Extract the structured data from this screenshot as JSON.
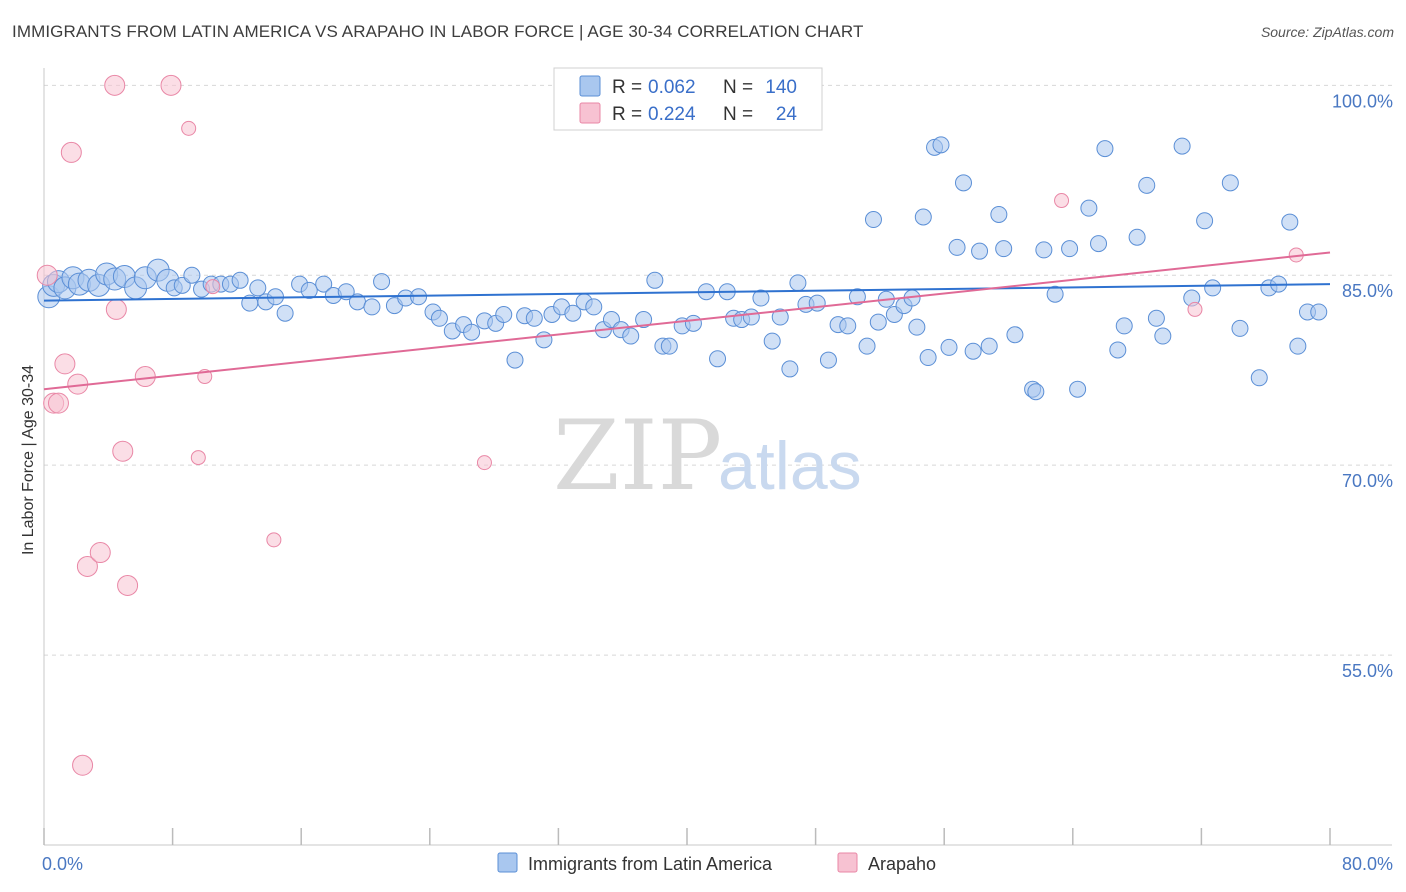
{
  "header": {
    "title": "IMMIGRANTS FROM LATIN AMERICA VS ARAPAHO IN LABOR FORCE | AGE 30-34 CORRELATION CHART",
    "source": "Source: ZipAtlas.com"
  },
  "watermark": {
    "zip": "ZIP",
    "atlas": "atlas"
  },
  "colors": {
    "blue_fill": "#a9c7ef",
    "blue_stroke": "#5b8fd6",
    "blue_line": "#2f72d0",
    "pink_fill": "#f7c2d2",
    "pink_stroke": "#e987a6",
    "pink_line": "#e06a96",
    "grid": "#d7d7d7",
    "tick_text": "#4a78c2"
  },
  "legend": {
    "rows": [
      {
        "r_label": "R =",
        "r_value": "0.062",
        "n_label": "N =",
        "n_value": "140"
      },
      {
        "r_label": "R =",
        "r_value": "0.224",
        "n_label": "N =",
        "n_value": "24"
      }
    ]
  },
  "chart_data": {
    "type": "scatter",
    "title": "IMMIGRANTS FROM LATIN AMERICA VS ARAPAHO IN LABOR FORCE | AGE 30-34 CORRELATION CHART",
    "xlabel": "",
    "ylabel": "In Labor Force | Age 30-34",
    "xlim": [
      0,
      80
    ],
    "ylim": [
      40,
      102
    ],
    "x_tick_labels": [
      "0.0%",
      "80.0%"
    ],
    "y_ticks": [
      {
        "value": 100,
        "label": "100.0%"
      },
      {
        "value": 85,
        "label": "85.0%"
      },
      {
        "value": 70,
        "label": "70.0%"
      },
      {
        "value": 55,
        "label": "55.0%"
      }
    ],
    "grid": true,
    "legend_position": "top-center",
    "series": [
      {
        "name": "Immigrants from Latin America",
        "r": 0.062,
        "n": 140,
        "trend": {
          "x": [
            0,
            80
          ],
          "y": [
            83.0,
            84.3
          ]
        },
        "points": [
          [
            0.3,
            83.3
          ],
          [
            0.6,
            84.2
          ],
          [
            0.9,
            84.5
          ],
          [
            1.3,
            84.0
          ],
          [
            1.8,
            84.8
          ],
          [
            2.2,
            84.3
          ],
          [
            2.8,
            84.6
          ],
          [
            3.4,
            84.2
          ],
          [
            3.9,
            85.1
          ],
          [
            4.4,
            84.7
          ],
          [
            5.0,
            84.9
          ],
          [
            5.7,
            84.0
          ],
          [
            6.3,
            84.8
          ],
          [
            7.1,
            85.4
          ],
          [
            7.7,
            84.6
          ],
          [
            8.1,
            84.0
          ],
          [
            8.6,
            84.2
          ],
          [
            9.2,
            85.0
          ],
          [
            9.8,
            83.9
          ],
          [
            10.4,
            84.3
          ],
          [
            11.0,
            84.3
          ],
          [
            11.6,
            84.3
          ],
          [
            12.2,
            84.6
          ],
          [
            12.8,
            82.8
          ],
          [
            13.3,
            84.0
          ],
          [
            13.8,
            82.9
          ],
          [
            14.4,
            83.3
          ],
          [
            15.0,
            82.0
          ],
          [
            15.9,
            84.3
          ],
          [
            16.5,
            83.8
          ],
          [
            17.4,
            84.3
          ],
          [
            18.0,
            83.4
          ],
          [
            18.8,
            83.7
          ],
          [
            19.5,
            82.9
          ],
          [
            20.4,
            82.5
          ],
          [
            21.0,
            84.5
          ],
          [
            21.8,
            82.6
          ],
          [
            22.5,
            83.2
          ],
          [
            23.3,
            83.3
          ],
          [
            24.2,
            82.1
          ],
          [
            24.6,
            81.6
          ],
          [
            25.4,
            80.6
          ],
          [
            26.1,
            81.1
          ],
          [
            26.6,
            80.5
          ],
          [
            27.4,
            81.4
          ],
          [
            28.1,
            81.2
          ],
          [
            28.6,
            81.9
          ],
          [
            29.3,
            78.3
          ],
          [
            29.9,
            81.8
          ],
          [
            30.5,
            81.6
          ],
          [
            31.1,
            79.9
          ],
          [
            31.6,
            81.9
          ],
          [
            32.2,
            82.5
          ],
          [
            32.9,
            82.0
          ],
          [
            33.6,
            82.9
          ],
          [
            34.2,
            82.5
          ],
          [
            34.8,
            80.7
          ],
          [
            35.3,
            81.5
          ],
          [
            35.9,
            80.7
          ],
          [
            36.5,
            80.2
          ],
          [
            37.3,
            81.5
          ],
          [
            38.0,
            84.6
          ],
          [
            38.5,
            79.4
          ],
          [
            38.9,
            79.4
          ],
          [
            39.7,
            81.0
          ],
          [
            40.4,
            81.2
          ],
          [
            41.2,
            83.7
          ],
          [
            41.9,
            78.4
          ],
          [
            42.5,
            83.7
          ],
          [
            42.9,
            81.6
          ],
          [
            43.4,
            81.5
          ],
          [
            44.0,
            81.7
          ],
          [
            44.6,
            83.2
          ],
          [
            45.3,
            79.8
          ],
          [
            45.8,
            81.7
          ],
          [
            46.4,
            77.6
          ],
          [
            46.9,
            84.4
          ],
          [
            47.4,
            82.7
          ],
          [
            48.1,
            82.8
          ],
          [
            48.8,
            78.3
          ],
          [
            49.4,
            81.1
          ],
          [
            50.0,
            81.0
          ],
          [
            50.6,
            83.3
          ],
          [
            51.2,
            79.4
          ],
          [
            51.9,
            81.3
          ],
          [
            52.4,
            83.1
          ],
          [
            52.9,
            81.9
          ],
          [
            53.5,
            82.6
          ],
          [
            54.0,
            83.2
          ],
          [
            54.3,
            80.9
          ],
          [
            55.0,
            78.5
          ],
          [
            55.4,
            95.1
          ],
          [
            55.8,
            95.3
          ],
          [
            56.3,
            79.3
          ],
          [
            56.8,
            87.2
          ],
          [
            57.2,
            92.3
          ],
          [
            57.8,
            79.0
          ],
          [
            58.2,
            86.9
          ],
          [
            58.8,
            79.4
          ],
          [
            59.4,
            89.8
          ],
          [
            59.7,
            87.1
          ],
          [
            60.4,
            80.3
          ],
          [
            61.5,
            76.0
          ],
          [
            61.7,
            75.8
          ],
          [
            62.2,
            87.0
          ],
          [
            62.9,
            83.5
          ],
          [
            63.8,
            87.1
          ],
          [
            64.3,
            76.0
          ],
          [
            65.0,
            90.3
          ],
          [
            65.6,
            87.5
          ],
          [
            66.0,
            95.0
          ],
          [
            66.8,
            79.1
          ],
          [
            67.2,
            81.0
          ],
          [
            68.0,
            88.0
          ],
          [
            68.6,
            92.1
          ],
          [
            69.2,
            81.6
          ],
          [
            69.6,
            80.2
          ],
          [
            70.8,
            95.2
          ],
          [
            71.4,
            83.2
          ],
          [
            72.2,
            89.3
          ],
          [
            72.7,
            84.0
          ],
          [
            73.8,
            92.3
          ],
          [
            74.4,
            80.8
          ],
          [
            75.6,
            76.9
          ],
          [
            76.2,
            84.0
          ],
          [
            76.8,
            84.3
          ],
          [
            77.5,
            89.2
          ],
          [
            78.0,
            79.4
          ],
          [
            78.6,
            82.1
          ],
          [
            79.3,
            82.1
          ],
          [
            54.7,
            89.6
          ],
          [
            51.6,
            89.4
          ]
        ]
      },
      {
        "name": "Arapaho",
        "r": 0.224,
        "n": 24,
        "trend": {
          "x": [
            0,
            80
          ],
          "y": [
            76.0,
            86.8
          ]
        },
        "points": [
          [
            0.2,
            85.0
          ],
          [
            0.6,
            74.9
          ],
          [
            0.9,
            74.9
          ],
          [
            1.3,
            78.0
          ],
          [
            1.7,
            94.7
          ],
          [
            2.1,
            76.4
          ],
          [
            2.4,
            46.3
          ],
          [
            2.7,
            62.0
          ],
          [
            3.5,
            63.1
          ],
          [
            4.4,
            100.0
          ],
          [
            4.5,
            82.3
          ],
          [
            4.9,
            71.1
          ],
          [
            5.2,
            60.5
          ],
          [
            6.3,
            77.0
          ],
          [
            7.9,
            100.0
          ],
          [
            9.0,
            96.6
          ],
          [
            9.6,
            70.6
          ],
          [
            10.0,
            77.0
          ],
          [
            10.5,
            84.1
          ],
          [
            14.3,
            64.1
          ],
          [
            27.4,
            70.2
          ],
          [
            63.3,
            90.9
          ],
          [
            71.6,
            82.3
          ],
          [
            77.9,
            86.6
          ]
        ]
      }
    ]
  },
  "bottom_legend": {
    "items": [
      {
        "label": "Immigrants from Latin America"
      },
      {
        "label": "Arapaho"
      }
    ]
  }
}
